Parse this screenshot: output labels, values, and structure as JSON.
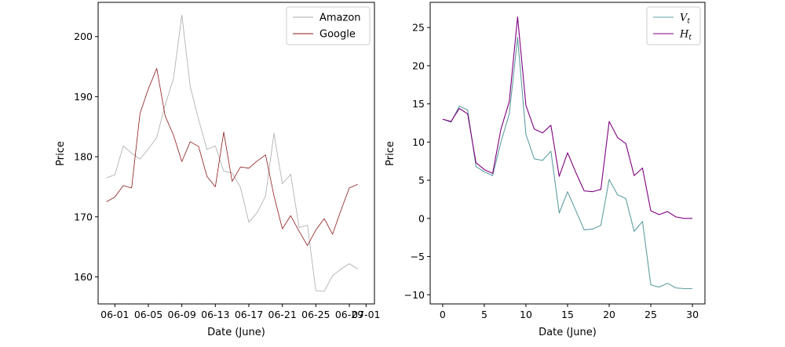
{
  "chart_data": [
    {
      "type": "line",
      "xlabel": "Date (June)",
      "ylabel": "Price",
      "x_tick_labels": [
        "06-01",
        "06-05",
        "06-09",
        "06-13",
        "06-17",
        "06-21",
        "06-25",
        "06-29",
        "07-01"
      ],
      "y_ticks": [
        160,
        170,
        180,
        190,
        200
      ],
      "ylim": [
        155.5,
        205.7
      ],
      "xlim": [
        "05-30",
        "07-02"
      ],
      "x": [
        "05-31",
        "06-01",
        "06-02",
        "06-03",
        "06-04",
        "06-05",
        "06-06",
        "06-07",
        "06-08",
        "06-09",
        "06-10",
        "06-11",
        "06-12",
        "06-13",
        "06-14",
        "06-15",
        "06-16",
        "06-17",
        "06-18",
        "06-19",
        "06-20",
        "06-21",
        "06-22",
        "06-23",
        "06-24",
        "06-25",
        "06-26",
        "06-27",
        "06-28",
        "06-29",
        "06-30"
      ],
      "legend_position": "top-right",
      "series": [
        {
          "name": "Amazon",
          "color": "#a9a9a9",
          "values": [
            176.5,
            177.0,
            181.8,
            180.6,
            179.6,
            181.3,
            183.2,
            188.6,
            193.0,
            203.6,
            191.7,
            186.2,
            181.2,
            181.8,
            177.6,
            177.3,
            174.9,
            169.1,
            170.7,
            173.5,
            183.9,
            175.5,
            177.1,
            168.2,
            168.6,
            157.7,
            157.6,
            160.2,
            161.3,
            162.2,
            161.3
          ]
        },
        {
          "name": "Google",
          "color": "#8b1a1a",
          "values": [
            172.5,
            173.3,
            175.2,
            174.8,
            187.2,
            191.3,
            194.7,
            186.8,
            183.6,
            179.2,
            182.5,
            181.7,
            176.7,
            175.0,
            184.1,
            175.9,
            178.3,
            178.1,
            179.3,
            180.3,
            173.5,
            168.0,
            170.2,
            167.6,
            165.2,
            167.8,
            169.7,
            167.1,
            171.1,
            174.8,
            175.4
          ]
        }
      ]
    },
    {
      "type": "line",
      "xlabel": "Date (June)",
      "ylabel": "Price",
      "x_ticks": [
        0,
        5,
        10,
        15,
        20,
        25,
        30
      ],
      "y_ticks": [
        -10,
        -5,
        0,
        5,
        10,
        15,
        20,
        25
      ],
      "xlim": [
        -1.5,
        31.5
      ],
      "ylim": [
        -11.2,
        28.3
      ],
      "x": [
        0,
        1,
        2,
        3,
        4,
        5,
        6,
        7,
        8,
        9,
        10,
        11,
        12,
        13,
        14,
        15,
        16,
        17,
        18,
        19,
        20,
        21,
        22,
        23,
        24,
        25,
        26,
        27,
        28,
        29,
        30
      ],
      "legend_position": "top-right",
      "series": [
        {
          "name": "V",
          "name_subscript": "t",
          "color": "#5f9ea0",
          "values": [
            13.0,
            12.6,
            14.7,
            14.2,
            6.8,
            6.1,
            5.6,
            10.0,
            13.7,
            23.7,
            11.0,
            7.8,
            7.6,
            8.8,
            0.7,
            3.5,
            1.0,
            -1.5,
            -1.4,
            -0.9,
            5.1,
            3.1,
            2.6,
            -1.7,
            -0.4,
            -8.7,
            -9.0,
            -8.5,
            -9.1,
            -9.2,
            -9.2
          ]
        },
        {
          "name": "H",
          "name_subscript": "t",
          "color": "#800080",
          "values": [
            13.0,
            12.7,
            14.4,
            13.7,
            7.3,
            6.4,
            5.9,
            11.7,
            15.3,
            26.4,
            14.8,
            11.7,
            11.2,
            12.2,
            5.5,
            8.6,
            6.0,
            3.6,
            3.5,
            3.8,
            12.7,
            10.6,
            9.8,
            5.6,
            6.6,
            1.0,
            0.5,
            0.9,
            0.2,
            0.0,
            0.0
          ]
        }
      ]
    }
  ]
}
